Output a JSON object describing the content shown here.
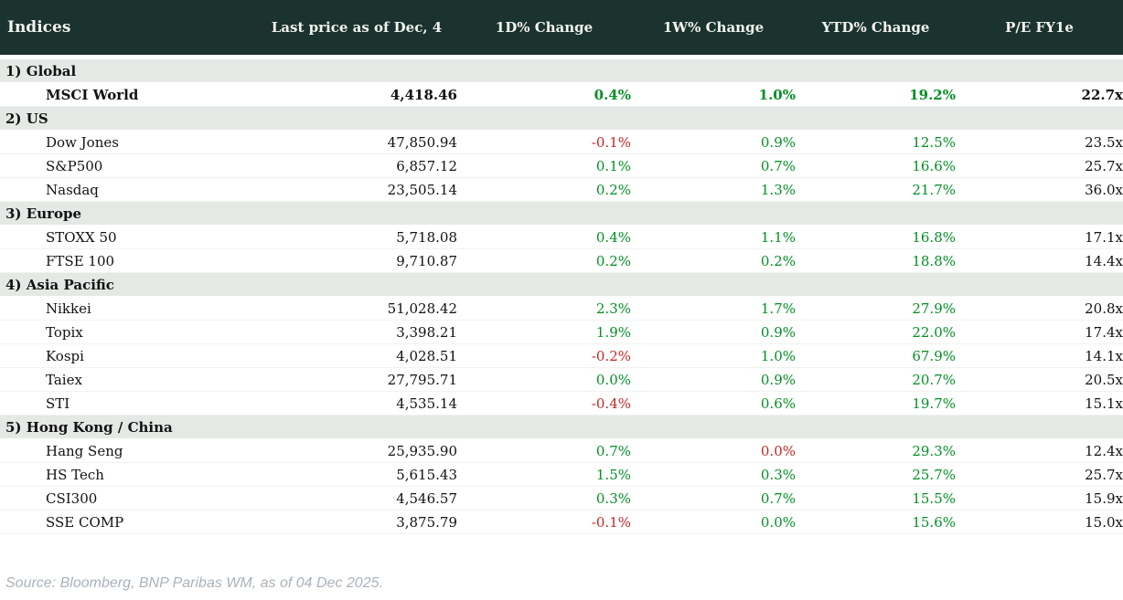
{
  "colors": {
    "header_bg": "#1a332e",
    "header_text": "#f3f3ee",
    "section_bg": "#e4e9e5",
    "positive": "#048f26",
    "negative": "#c42727",
    "source_text": "#a9b2bb"
  },
  "table": {
    "columns": [
      "Indices",
      "Last price as of Dec, 4",
      "1D% Change",
      "1W% Change",
      "YTD% Change",
      "P/E FY1e"
    ],
    "sections": [
      {
        "label": "1) Global",
        "rows": [
          {
            "name": "MSCI World",
            "price": "4,418.46",
            "bold": true,
            "changes": [
              {
                "value": "0.4%",
                "dir": "pos"
              },
              {
                "value": "1.0%",
                "dir": "pos"
              },
              {
                "value": "19.2%",
                "dir": "pos"
              }
            ],
            "pe": "22.7x"
          }
        ]
      },
      {
        "label": "2) US",
        "rows": [
          {
            "name": "Dow Jones",
            "price": "47,850.94",
            "bold": false,
            "changes": [
              {
                "value": "-0.1%",
                "dir": "neg"
              },
              {
                "value": "0.9%",
                "dir": "pos"
              },
              {
                "value": "12.5%",
                "dir": "pos"
              }
            ],
            "pe": "23.5x"
          },
          {
            "name": "S&P500",
            "price": "6,857.12",
            "bold": false,
            "changes": [
              {
                "value": "0.1%",
                "dir": "pos"
              },
              {
                "value": "0.7%",
                "dir": "pos"
              },
              {
                "value": "16.6%",
                "dir": "pos"
              }
            ],
            "pe": "25.7x"
          },
          {
            "name": "Nasdaq",
            "price": "23,505.14",
            "bold": false,
            "changes": [
              {
                "value": "0.2%",
                "dir": "pos"
              },
              {
                "value": "1.3%",
                "dir": "pos"
              },
              {
                "value": "21.7%",
                "dir": "pos"
              }
            ],
            "pe": "36.0x"
          }
        ]
      },
      {
        "label": "3) Europe",
        "rows": [
          {
            "name": "STOXX 50",
            "price": "5,718.08",
            "bold": false,
            "changes": [
              {
                "value": "0.4%",
                "dir": "pos"
              },
              {
                "value": "1.1%",
                "dir": "pos"
              },
              {
                "value": "16.8%",
                "dir": "pos"
              }
            ],
            "pe": "17.1x"
          },
          {
            "name": "FTSE 100",
            "price": "9,710.87",
            "bold": false,
            "changes": [
              {
                "value": "0.2%",
                "dir": "pos"
              },
              {
                "value": "0.2%",
                "dir": "pos"
              },
              {
                "value": "18.8%",
                "dir": "pos"
              }
            ],
            "pe": "14.4x"
          }
        ]
      },
      {
        "label": "4) Asia Pacific",
        "rows": [
          {
            "name": "Nikkei",
            "price": "51,028.42",
            "bold": false,
            "changes": [
              {
                "value": "2.3%",
                "dir": "pos"
              },
              {
                "value": "1.7%",
                "dir": "pos"
              },
              {
                "value": "27.9%",
                "dir": "pos"
              }
            ],
            "pe": "20.8x"
          },
          {
            "name": "Topix",
            "price": "3,398.21",
            "bold": false,
            "changes": [
              {
                "value": "1.9%",
                "dir": "pos"
              },
              {
                "value": "0.9%",
                "dir": "pos"
              },
              {
                "value": "22.0%",
                "dir": "pos"
              }
            ],
            "pe": "17.4x"
          },
          {
            "name": "Kospi",
            "price": "4,028.51",
            "bold": false,
            "changes": [
              {
                "value": "-0.2%",
                "dir": "neg"
              },
              {
                "value": "1.0%",
                "dir": "pos"
              },
              {
                "value": "67.9%",
                "dir": "pos"
              }
            ],
            "pe": "14.1x"
          },
          {
            "name": "Taiex",
            "price": "27,795.71",
            "bold": false,
            "changes": [
              {
                "value": "0.0%",
                "dir": "pos"
              },
              {
                "value": "0.9%",
                "dir": "pos"
              },
              {
                "value": "20.7%",
                "dir": "pos"
              }
            ],
            "pe": "20.5x"
          },
          {
            "name": "STI",
            "price": "4,535.14",
            "bold": false,
            "changes": [
              {
                "value": "-0.4%",
                "dir": "neg"
              },
              {
                "value": "0.6%",
                "dir": "pos"
              },
              {
                "value": "19.7%",
                "dir": "pos"
              }
            ],
            "pe": "15.1x"
          }
        ]
      },
      {
        "label": "5) Hong Kong / China",
        "rows": [
          {
            "name": "Hang Seng",
            "price": "25,935.90",
            "bold": false,
            "changes": [
              {
                "value": "0.7%",
                "dir": "pos"
              },
              {
                "value": "0.0%",
                "dir": "neg"
              },
              {
                "value": "29.3%",
                "dir": "pos"
              }
            ],
            "pe": "12.4x"
          },
          {
            "name": "HS Tech",
            "price": "5,615.43",
            "bold": false,
            "changes": [
              {
                "value": "1.5%",
                "dir": "pos"
              },
              {
                "value": "0.3%",
                "dir": "pos"
              },
              {
                "value": "25.7%",
                "dir": "pos"
              }
            ],
            "pe": "25.7x"
          },
          {
            "name": "CSI300",
            "price": "4,546.57",
            "bold": false,
            "changes": [
              {
                "value": "0.3%",
                "dir": "pos"
              },
              {
                "value": "0.7%",
                "dir": "pos"
              },
              {
                "value": "15.5%",
                "dir": "pos"
              }
            ],
            "pe": "15.9x"
          },
          {
            "name": "SSE COMP",
            "price": "3,875.79",
            "bold": false,
            "changes": [
              {
                "value": "-0.1%",
                "dir": "neg"
              },
              {
                "value": "0.0%",
                "dir": "pos"
              },
              {
                "value": "15.6%",
                "dir": "pos"
              }
            ],
            "pe": "15.0x"
          }
        ]
      }
    ]
  },
  "footer": {
    "source": "Source: Bloomberg, BNP Paribas WM, as of 04 Dec 2025."
  }
}
